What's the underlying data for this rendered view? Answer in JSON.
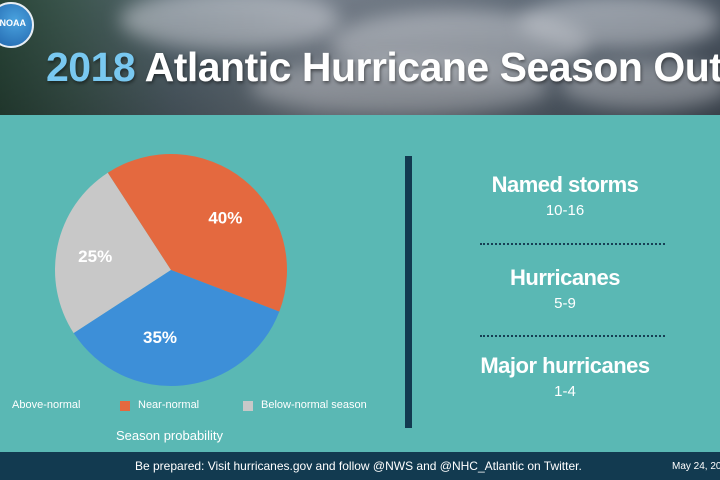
{
  "header": {
    "logo_text": "NOAA",
    "title_year": "2018",
    "title_rest": "Atlantic Hurricane Season Outlook"
  },
  "chart_data": {
    "type": "pie",
    "title": "",
    "caption": "Season probability",
    "slices": [
      {
        "label": "Above-normal",
        "value": 35,
        "display": "35%",
        "color": "#3d8fd8"
      },
      {
        "label": "Near-normal",
        "value": 40,
        "display": "40%",
        "color": "#e4693f"
      },
      {
        "label": "Below-normal season",
        "value": 25,
        "display": "25%",
        "color": "#c8c8c8"
      }
    ],
    "legend_position": "bottom"
  },
  "stats": [
    {
      "label": "Named storms",
      "value": "10-16"
    },
    {
      "label": "Hurricanes",
      "value": "5-9"
    },
    {
      "label": "Major hurricanes",
      "value": "1-4"
    }
  ],
  "footer": {
    "text": "Be prepared: Visit hurricanes.gov and follow @NWS and @NHC_Atlantic on Twitter.",
    "date": "May 24, 20"
  }
}
